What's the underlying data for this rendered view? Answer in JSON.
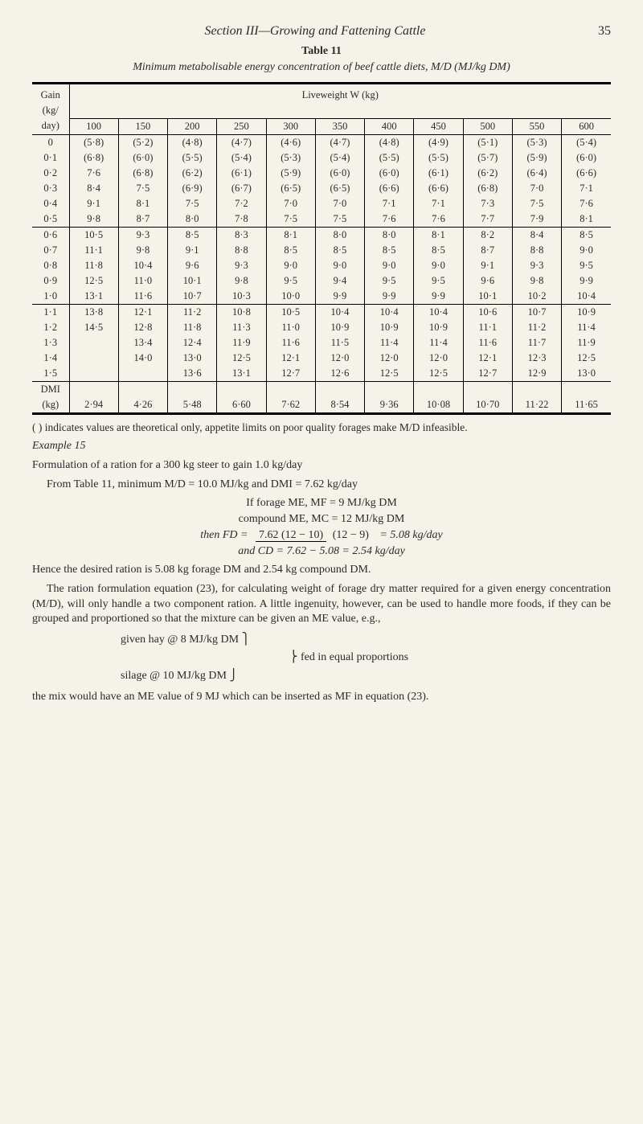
{
  "header": {
    "section": "Section III—Growing and Fattening Cattle",
    "page": "35"
  },
  "table": {
    "label": "Table 11",
    "caption": "Minimum metabolisable energy concentration of beef cattle diets, M/D (MJ/kg DM)",
    "gain_label_top": "Gain",
    "gain_label_mid": "(kg/",
    "gain_label_bot": "day)",
    "lw_label": "Liveweight W (kg)",
    "weights": [
      "100",
      "150",
      "200",
      "250",
      "300",
      "350",
      "400",
      "450",
      "500",
      "550",
      "600"
    ],
    "groups": [
      {
        "gains": [
          "0",
          "0·1",
          "0·2",
          "0·3",
          "0·4",
          "0·5"
        ],
        "rows": [
          [
            "(5·8)",
            "(5·2)",
            "(4·8)",
            "(4·7)",
            "(4·6)",
            "(4·7)",
            "(4·8)",
            "(4·9)",
            "(5·1)",
            "(5·3)",
            "(5·4)"
          ],
          [
            "(6·8)",
            "(6·0)",
            "(5·5)",
            "(5·4)",
            "(5·3)",
            "(5·4)",
            "(5·5)",
            "(5·5)",
            "(5·7)",
            "(5·9)",
            "(6·0)"
          ],
          [
            "7·6",
            "(6·8)",
            "(6·2)",
            "(6·1)",
            "(5·9)",
            "(6·0)",
            "(6·0)",
            "(6·1)",
            "(6·2)",
            "(6·4)",
            "(6·6)"
          ],
          [
            "8·4",
            "7·5",
            "(6·9)",
            "(6·7)",
            "(6·5)",
            "(6·5)",
            "(6·6)",
            "(6·6)",
            "(6·8)",
            "7·0",
            "7·1"
          ],
          [
            "9·1",
            "8·1",
            "7·5",
            "7·2",
            "7·0",
            "7·0",
            "7·1",
            "7·1",
            "7·3",
            "7·5",
            "7·6"
          ],
          [
            "9·8",
            "8·7",
            "8·0",
            "7·8",
            "7·5",
            "7·5",
            "7·6",
            "7·6",
            "7·7",
            "7·9",
            "8·1"
          ]
        ]
      },
      {
        "gains": [
          "0·6",
          "0·7",
          "0·8",
          "0·9",
          "1·0"
        ],
        "rows": [
          [
            "10·5",
            "9·3",
            "8·5",
            "8·3",
            "8·1",
            "8·0",
            "8·0",
            "8·1",
            "8·2",
            "8·4",
            "8·5"
          ],
          [
            "11·1",
            "9·8",
            "9·1",
            "8·8",
            "8·5",
            "8·5",
            "8·5",
            "8·5",
            "8·7",
            "8·8",
            "9·0"
          ],
          [
            "11·8",
            "10·4",
            "9·6",
            "9·3",
            "9·0",
            "9·0",
            "9·0",
            "9·0",
            "9·1",
            "9·3",
            "9·5"
          ],
          [
            "12·5",
            "11·0",
            "10·1",
            "9·8",
            "9·5",
            "9·4",
            "9·5",
            "9·5",
            "9·6",
            "9·8",
            "9·9"
          ],
          [
            "13·1",
            "11·6",
            "10·7",
            "10·3",
            "10·0",
            "9·9",
            "9·9",
            "9·9",
            "10·1",
            "10·2",
            "10·4"
          ]
        ]
      },
      {
        "gains": [
          "1·1",
          "1·2",
          "1·3",
          "1·4",
          "1·5"
        ],
        "rows": [
          [
            "13·8",
            "12·1",
            "11·2",
            "10·8",
            "10·5",
            "10·4",
            "10·4",
            "10·4",
            "10·6",
            "10·7",
            "10·9"
          ],
          [
            "14·5",
            "12·8",
            "11·8",
            "11·3",
            "11·0",
            "10·9",
            "10·9",
            "10·9",
            "11·1",
            "11·2",
            "11·4"
          ],
          [
            "",
            "13·4",
            "12·4",
            "11·9",
            "11·6",
            "11·5",
            "11·4",
            "11·4",
            "11·6",
            "11·7",
            "11·9"
          ],
          [
            "",
            "14·0",
            "13·0",
            "12·5",
            "12·1",
            "12·0",
            "12·0",
            "12·0",
            "12·1",
            "12·3",
            "12·5"
          ],
          [
            "",
            "",
            "13·6",
            "13·1",
            "12·7",
            "12·6",
            "12·5",
            "12·5",
            "12·7",
            "12·9",
            "13·0"
          ]
        ]
      }
    ],
    "dmi": {
      "label1": "DMI",
      "label2": "(kg)",
      "values": [
        "2·94",
        "4·26",
        "5·48",
        "6·60",
        "7·62",
        "8·54",
        "9·36",
        "10·08",
        "10·70",
        "11·22",
        "11·65"
      ]
    },
    "footnote": "( ) indicates values are theoretical only, appetite limits on poor quality forages make M/D infeasible."
  },
  "body": {
    "example": "Example 15",
    "p1": "Formulation of a ration for a 300 kg steer to gain 1.0 kg/day",
    "p2": "From Table 11, minimum M/D = 10.0 MJ/kg and DMI = 7.62 kg/day",
    "p3": "If forage ME, MF =   9 MJ/kg DM",
    "p4": "compound ME, MC = 12 MJ/kg DM",
    "eq_then": "then  FD  =",
    "eq_num": "7.62 (12 − 10)",
    "eq_den": "(12 − 9)",
    "eq_result": "= 5.08 kg/day",
    "eq_cd": "and   CD  =  7.62 − 5.08 = 2.54 kg/day",
    "p5": "Hence the desired ration is 5.08 kg forage DM and 2.54 kg compound DM.",
    "p6": "The ration formulation equation (23), for calculating weight of forage dry matter required for a given energy concentration (M/D), will only handle a two component ration. A little ingenuity, however, can be used to handle more foods, if they can be grouped and proportioned so that the mixture can be given an ME value, e.g.,",
    "brace_a": "given hay @   8 MJ/kg DM",
    "brace_note": "fed in equal proportions",
    "brace_b": "silage        @ 10 MJ/kg DM",
    "p7": "the mix would have an ME value of 9 MJ which can be inserted as MF in equation (23)."
  }
}
